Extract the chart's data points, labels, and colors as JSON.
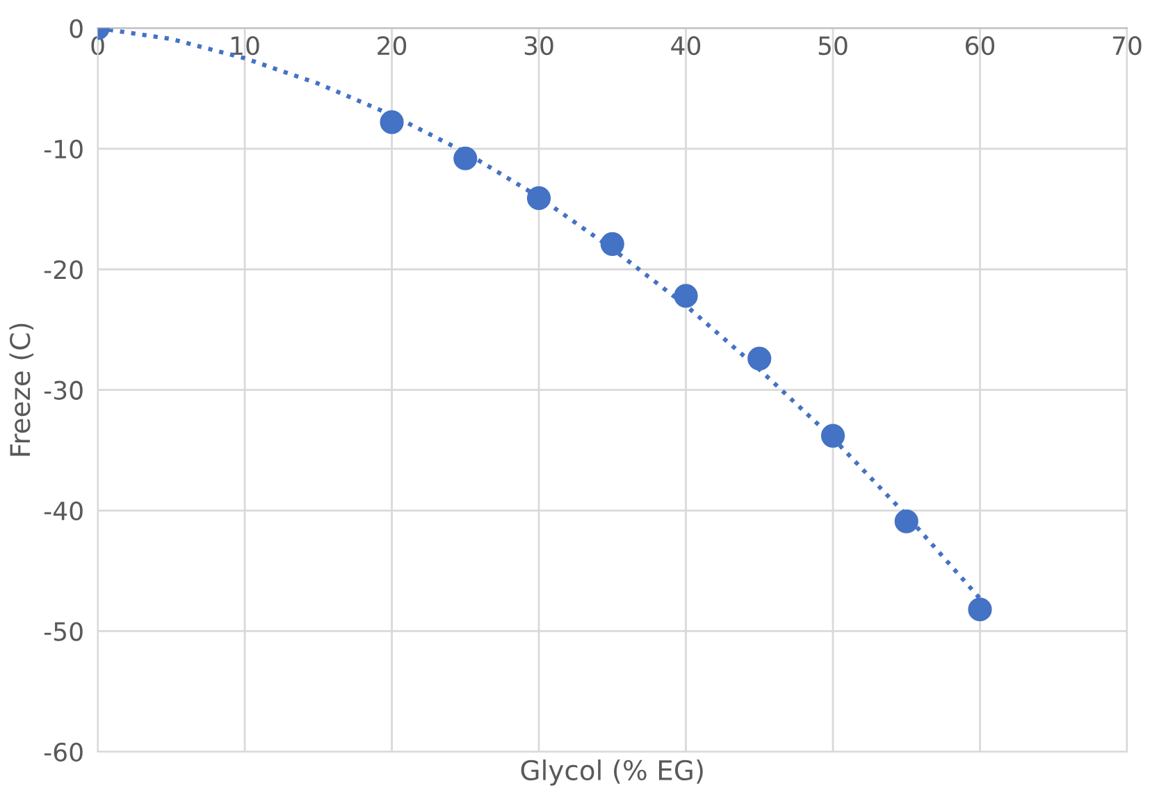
{
  "chart_data": {
    "type": "scatter",
    "xlabel": "Glycol (% EG)",
    "ylabel": "Freeze (C)",
    "xlim": [
      0,
      70
    ],
    "xticks": [
      0,
      10,
      20,
      30,
      40,
      50,
      60,
      70
    ],
    "ylim": [
      -60,
      0
    ],
    "yticks": [
      -60,
      -50,
      -40,
      -30,
      -20,
      -10,
      0
    ],
    "grid": true,
    "legend": false,
    "series": [
      {
        "marker": "circle",
        "color": "#4472c4",
        "x": [
          0,
          20,
          25,
          30,
          35,
          40,
          45,
          50,
          55,
          60
        ],
        "values": [
          0,
          -7.8,
          -10.8,
          -14.1,
          -17.9,
          -22.2,
          -27.4,
          -33.8,
          -40.9,
          -48.2
        ]
      },
      {
        "type": "line",
        "marker": "none",
        "color": "#4472c4",
        "line_style": "dotted",
        "x": [
          0,
          5,
          10,
          15,
          20,
          25,
          30,
          35,
          40,
          45,
          50,
          55,
          60
        ],
        "values": [
          0,
          -0.9,
          -2.5,
          -4.6,
          -7.2,
          -10.3,
          -14.0,
          -18.3,
          -23.0,
          -28.3,
          -34.0,
          -40.4,
          -47.3
        ]
      }
    ]
  }
}
